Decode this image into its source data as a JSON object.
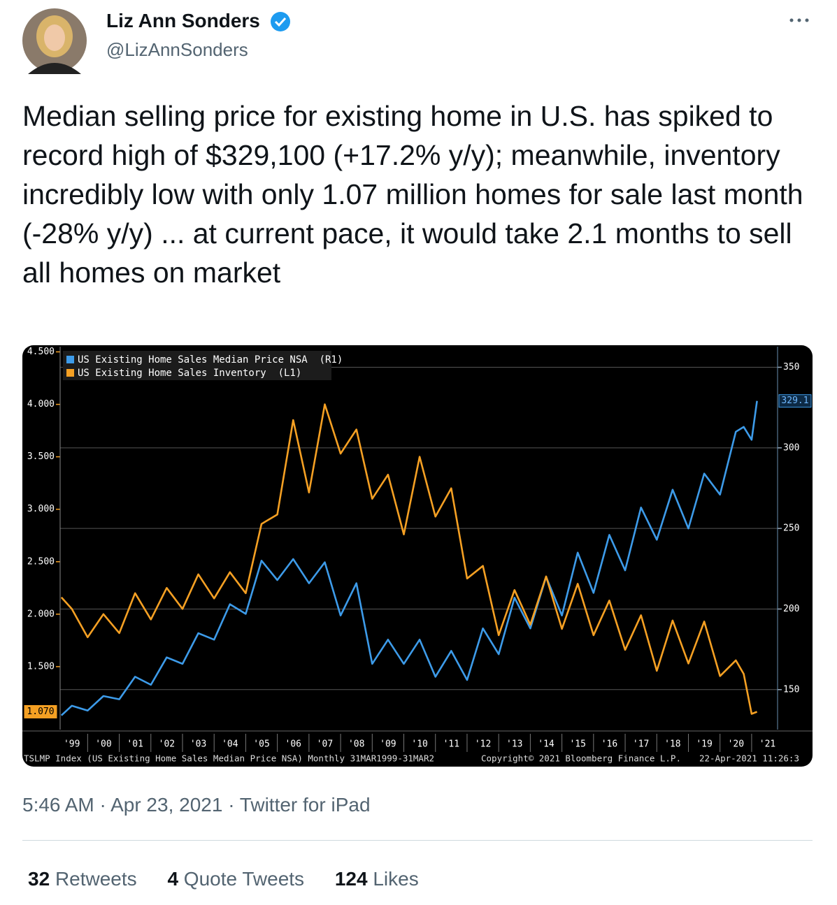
{
  "tweet": {
    "name": "Liz Ann Sonders",
    "handle": "@LizAnnSonders",
    "text": "Median selling price for existing home in U.S. has spiked to record high of $329,100 (+17.2% y/y); meanwhile, inventory incredibly low with only 1.07 million homes for sale last month (-28% y/y) ... at current pace, it would take 2.1 months to sell all homes on market",
    "timestamp": "5:46 AM · Apr 23, 2021 · Twitter for iPad",
    "stats": [
      {
        "count": 32,
        "label": "Retweets"
      },
      {
        "count": 4,
        "label": "Quote Tweets"
      },
      {
        "count": 124,
        "label": "Likes"
      }
    ]
  },
  "chart_data": {
    "type": "line",
    "x": [
      1999.17,
      1999.5,
      2000,
      2000.5,
      2001,
      2001.5,
      2002,
      2002.5,
      2003,
      2003.5,
      2004,
      2004.5,
      2005,
      2005.5,
      2006,
      2006.5,
      2007,
      2007.5,
      2008,
      2008.5,
      2009,
      2009.5,
      2010,
      2010.5,
      2011,
      2011.5,
      2012,
      2012.5,
      2013,
      2013.5,
      2014,
      2014.5,
      2015,
      2015.5,
      2016,
      2016.5,
      2017,
      2017.5,
      2018,
      2018.5,
      2019,
      2019.5,
      2020,
      2020.5,
      2020.75,
      2021,
      2021.17
    ],
    "series": [
      {
        "name": "US Existing Home Sales Median Price NSA  (R1)",
        "color": "#3d9be9",
        "axis": "y2",
        "values": [
          134,
          140,
          137,
          146,
          144,
          158,
          153,
          170,
          166,
          185,
          181,
          203,
          197,
          230,
          218,
          231,
          216,
          229,
          196,
          216,
          166,
          181,
          166,
          181,
          158,
          174,
          156,
          188,
          172,
          207,
          188,
          220,
          196,
          235,
          210,
          246,
          224,
          263,
          243,
          274,
          250,
          284,
          271,
          310,
          313,
          305,
          329.1
        ]
      },
      {
        "name": "US Existing Home Sales Inventory  (L1)",
        "color": "#f5a023",
        "values": [
          2.16,
          2.05,
          1.78,
          2.0,
          1.82,
          2.2,
          1.95,
          2.25,
          2.05,
          2.38,
          2.15,
          2.4,
          2.2,
          2.86,
          2.95,
          3.85,
          3.16,
          4.0,
          3.53,
          3.76,
          3.1,
          3.33,
          2.76,
          3.5,
          2.93,
          3.2,
          2.34,
          2.46,
          1.8,
          2.23,
          1.9,
          2.36,
          1.86,
          2.29,
          1.8,
          2.13,
          1.66,
          1.99,
          1.46,
          1.94,
          1.53,
          1.93,
          1.41,
          1.56,
          1.43,
          1.05,
          1.07
        ],
        "value_labels": [
          null,
          null,
          null,
          null,
          null,
          null,
          null,
          null,
          null,
          null,
          null,
          null,
          null,
          null,
          null,
          null,
          null,
          null,
          null,
          null,
          null,
          null,
          null,
          null,
          null,
          null,
          null,
          null,
          null,
          null,
          null,
          null,
          null,
          null,
          null,
          null,
          null,
          null,
          null,
          null,
          null,
          null,
          null,
          null,
          null,
          null,
          "1.070"
        ]
      }
    ],
    "xlim": [
      1999.13,
      2021.82
    ],
    "xticks": [
      {
        "value": 1999.5,
        "label": "'99"
      },
      {
        "value": 2000.5,
        "label": "'00"
      },
      {
        "value": 2001.5,
        "label": "'01"
      },
      {
        "value": 2002.5,
        "label": "'02"
      },
      {
        "value": 2003.5,
        "label": "'03"
      },
      {
        "value": 2004.5,
        "label": "'04"
      },
      {
        "value": 2005.5,
        "label": "'05"
      },
      {
        "value": 2006.5,
        "label": "'06"
      },
      {
        "value": 2007.5,
        "label": "'07"
      },
      {
        "value": 2008.5,
        "label": "'08"
      },
      {
        "value": 2009.5,
        "label": "'09"
      },
      {
        "value": 2010.5,
        "label": "'10"
      },
      {
        "value": 2011.5,
        "label": "'11"
      },
      {
        "value": 2012.5,
        "label": "'12"
      },
      {
        "value": 2013.5,
        "label": "'13"
      },
      {
        "value": 2014.5,
        "label": "'14"
      },
      {
        "value": 2015.5,
        "label": "'15"
      },
      {
        "value": 2016.5,
        "label": "'16"
      },
      {
        "value": 2017.5,
        "label": "'17"
      },
      {
        "value": 2018.5,
        "label": "'18"
      },
      {
        "value": 2019.5,
        "label": "'19"
      },
      {
        "value": 2020.5,
        "label": "'20"
      },
      {
        "value": 2021.5,
        "label": "'21"
      }
    ],
    "ylim": [
      0.9,
      4.55
    ],
    "yticks": [
      {
        "value": 1.5,
        "label": "1.500"
      },
      {
        "value": 2,
        "label": "2.000"
      },
      {
        "value": 2.5,
        "label": "2.500"
      },
      {
        "value": 3,
        "label": "3.000"
      },
      {
        "value": 3.5,
        "label": "3.500"
      },
      {
        "value": 4,
        "label": "4.000"
      },
      {
        "value": 4.5,
        "label": "4.500"
      }
    ],
    "y2lim": [
      125.2,
      362.8
    ],
    "y2ticks": [
      150,
      200,
      250,
      300,
      350
    ],
    "grid": true,
    "legend": "top-left",
    "footer": [
      "TSLMP Index (US Existing Home Sales Median Price NSA) Monthly 31MAR1999-31MAR2",
      "Copyright© 2021 Bloomberg Finance L.P.",
      "22-Apr-2021 11:26:3"
    ]
  }
}
